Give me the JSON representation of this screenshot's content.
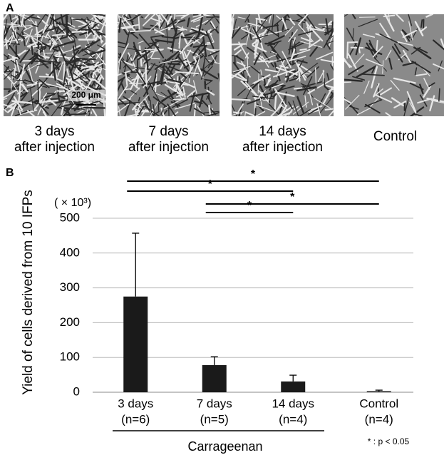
{
  "panel_a": {
    "label": "A",
    "scale_bar": "200 μm",
    "captions": [
      [
        "3 days",
        "after injection"
      ],
      [
        "7 days",
        "after injection"
      ],
      [
        "14 days",
        "after injection"
      ],
      [
        "Control"
      ]
    ]
  },
  "chart_data": {
    "type": "bar",
    "panel_label": "B",
    "y_label": "Yield of cells derived from 10 IFPs",
    "y_unit": "( × 10³)",
    "categories": [
      "3 days",
      "7 days",
      "14 days",
      "Control"
    ],
    "category_notes": [
      "(n=6)",
      "(n=5)",
      "(n=4)",
      "(n=4)"
    ],
    "values": [
      275,
      78,
      31,
      3
    ],
    "errors": [
      182,
      24,
      18,
      3
    ],
    "color": "#1a1a1a",
    "ylim": [
      0,
      500
    ],
    "yticks": [
      0,
      100,
      200,
      300,
      400,
      500
    ],
    "grid": true,
    "group_label": "Carrageenan",
    "significance_labels": [
      "*",
      "*",
      "*",
      "*"
    ],
    "footnote": "* : p < 0.05"
  }
}
